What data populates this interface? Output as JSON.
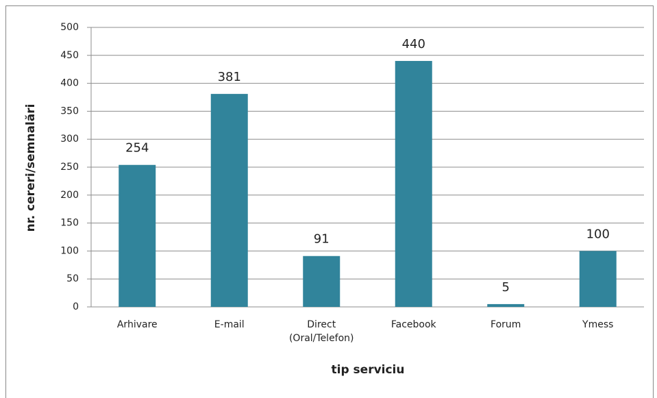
{
  "chart_data": {
    "type": "bar",
    "categories": [
      "Arhivare",
      "E-mail",
      "Direct (Oral/Telefon)",
      "Facebook",
      "Forum",
      "Ymess"
    ],
    "values": [
      254,
      381,
      91,
      440,
      5,
      100
    ],
    "color": "#31849b",
    "ylim": [
      0,
      500
    ],
    "yticks": [
      0,
      50,
      100,
      150,
      200,
      250,
      300,
      350,
      400,
      450,
      500
    ],
    "grid": true,
    "xlabel": "tip serviciu",
    "ylabel": "nr. cereri/semnalări"
  }
}
